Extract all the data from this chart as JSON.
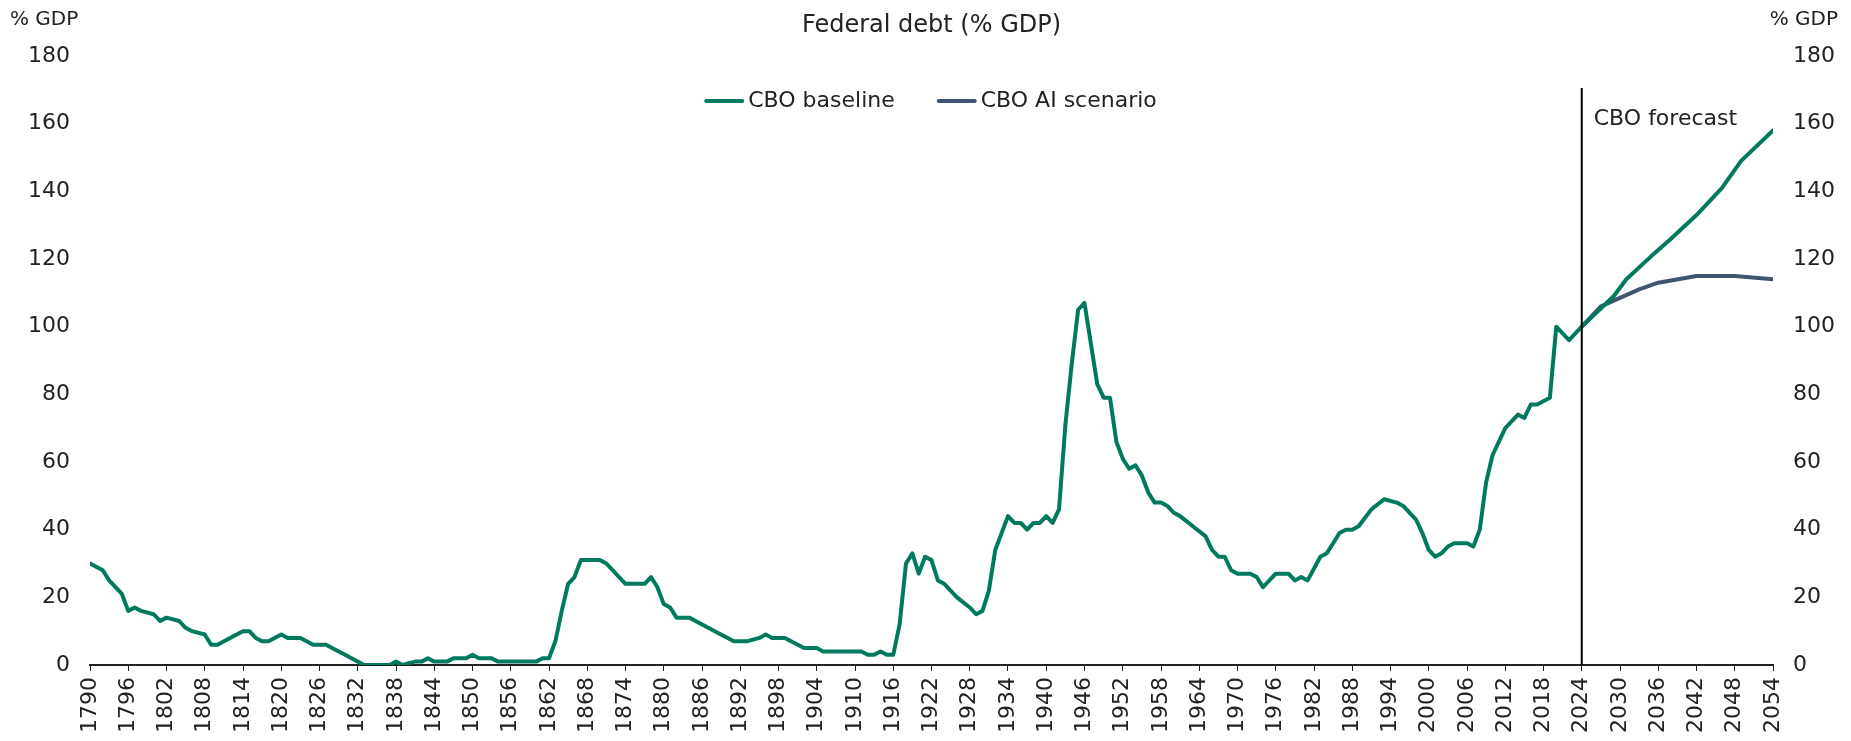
{
  "chart_data": {
    "type": "line",
    "title": "Federal debt (% GDP)",
    "ylabel": "% GDP",
    "y2label": "% GDP",
    "series": [
      {
        "name": "CBO baseline",
        "color": "#007a5e",
        "x": [
          1790,
          1792,
          1793,
          1795,
          1796,
          1797,
          1798,
          1800,
          1801,
          1802,
          1804,
          1805,
          1806,
          1808,
          1809,
          1810,
          1813,
          1814,
          1815,
          1816,
          1817,
          1818,
          1820,
          1821,
          1823,
          1825,
          1827,
          1830,
          1833,
          1837,
          1838,
          1839,
          1841,
          1842,
          1843,
          1844,
          1846,
          1847,
          1849,
          1850,
          1851,
          1853,
          1854,
          1860,
          1861,
          1862,
          1863,
          1864,
          1865,
          1866,
          1867,
          1870,
          1871,
          1873,
          1874,
          1877,
          1878,
          1879,
          1880,
          1881,
          1882,
          1884,
          1885,
          1888,
          1891,
          1893,
          1895,
          1896,
          1897,
          1899,
          1902,
          1904,
          1905,
          1911,
          1912,
          1913,
          1914,
          1915,
          1916,
          1917,
          1918,
          1919,
          1920,
          1921,
          1922,
          1923,
          1924,
          1926,
          1928,
          1929,
          1930,
          1931,
          1932,
          1934,
          1935,
          1936,
          1937,
          1938,
          1939,
          1940,
          1941,
          1942,
          1943,
          1944,
          1945,
          1946,
          1947,
          1948,
          1949,
          1950,
          1951,
          1952,
          1953,
          1954,
          1955,
          1956,
          1957,
          1958,
          1959,
          1960,
          1961,
          1963,
          1965,
          1966,
          1967,
          1968,
          1969,
          1970,
          1972,
          1973,
          1974,
          1976,
          1978,
          1979,
          1980,
          1981,
          1983,
          1984,
          1985,
          1986,
          1987,
          1988,
          1989,
          1991,
          1993,
          1995,
          1996,
          1998,
          1999,
          2000,
          2001,
          2002,
          2003,
          2004,
          2006,
          2007,
          2008,
          2009,
          2010,
          2012,
          2014,
          2015,
          2016,
          2017,
          2019,
          2020,
          2022,
          2024,
          2029,
          2031,
          2035,
          2038,
          2042,
          2046,
          2049,
          2054
        ],
        "values": [
          30,
          28,
          25,
          21,
          16,
          17,
          16,
          15,
          13,
          14,
          13,
          11,
          10,
          9,
          6,
          6,
          9,
          10,
          10,
          8,
          7,
          7,
          9,
          8,
          8,
          6,
          6,
          3,
          0,
          0,
          1,
          0,
          1,
          1,
          2,
          1,
          1,
          2,
          2,
          3,
          2,
          2,
          1,
          1,
          2,
          2,
          7,
          16,
          24,
          26,
          31,
          31,
          30,
          26,
          24,
          24,
          26,
          23,
          18,
          17,
          14,
          14,
          13,
          10,
          7,
          7,
          8,
          9,
          8,
          8,
          5,
          5,
          4,
          4,
          3,
          3,
          4,
          3,
          3,
          12,
          30,
          33,
          27,
          32,
          31,
          25,
          24,
          20,
          17,
          15,
          16,
          22,
          34,
          44,
          42,
          42,
          40,
          42,
          42,
          44,
          42,
          46,
          71,
          89,
          105,
          107,
          95,
          83,
          79,
          79,
          66,
          61,
          58,
          59,
          56,
          51,
          48,
          48,
          47,
          45,
          44,
          41,
          38,
          34,
          32,
          32,
          28,
          27,
          27,
          26,
          23,
          27,
          27,
          25,
          26,
          25,
          32,
          33,
          36,
          39,
          40,
          40,
          41,
          46,
          49,
          48,
          47,
          43,
          39,
          34,
          32,
          33,
          35,
          36,
          36,
          35,
          40,
          54,
          62,
          70,
          74,
          73,
          77,
          77,
          79,
          100,
          96,
          100,
          109,
          114,
          121,
          126,
          133,
          141,
          149,
          158
        ]
      },
      {
        "name": "CBO AI scenario",
        "color": "#3f5570",
        "x": [
          2024,
          2027,
          2033,
          2036,
          2042,
          2048,
          2054
        ],
        "values": [
          100,
          106,
          111,
          113,
          115,
          115,
          114
        ]
      }
    ],
    "xlim": [
      1790,
      2054
    ],
    "xticks": [
      1790,
      1796,
      1802,
      1808,
      1814,
      1820,
      1826,
      1832,
      1838,
      1844,
      1850,
      1856,
      1862,
      1868,
      1874,
      1880,
      1886,
      1892,
      1898,
      1904,
      1910,
      1916,
      1922,
      1928,
      1934,
      1940,
      1946,
      1952,
      1958,
      1964,
      1970,
      1976,
      1982,
      1988,
      1994,
      2000,
      2006,
      2012,
      2018,
      2024,
      2030,
      2036,
      2042,
      2048,
      2054
    ],
    "ylim": [
      0,
      180
    ],
    "yticks": [
      0,
      20,
      40,
      60,
      80,
      100,
      120,
      140,
      160,
      180
    ],
    "y2lim": [
      0,
      180
    ],
    "y2ticks": [
      0,
      20,
      40,
      60,
      80,
      100,
      120,
      140,
      160,
      180
    ],
    "ref_lines": [
      {
        "axis": "x",
        "value": 2024,
        "label": "CBO forecast",
        "color": "#000000"
      }
    ],
    "legend": "top",
    "grid": false,
    "marker": "none",
    "line_style": "solid"
  }
}
